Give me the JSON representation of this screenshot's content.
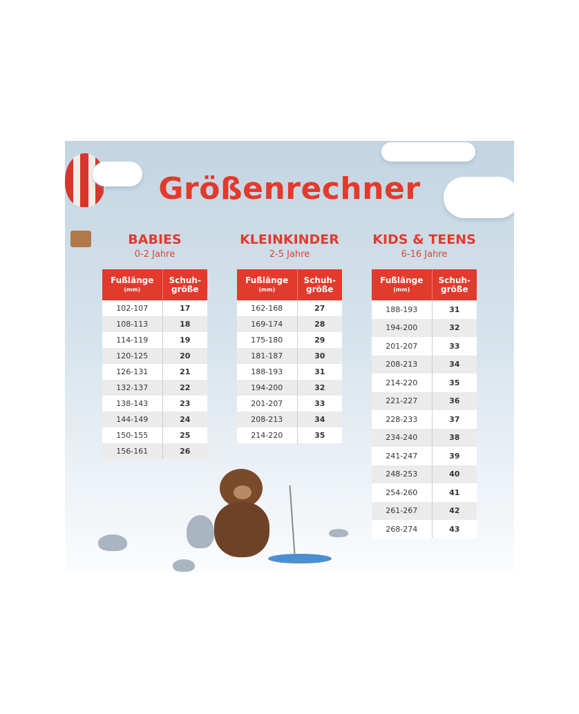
{
  "title": "Größenrechner",
  "header": {
    "foot_length": "Fußlänge",
    "foot_unit": "(mm)",
    "size_line1": "Schuh-",
    "size_line2": "größe"
  },
  "colors": {
    "accent": "#e23a2c",
    "row_alt": "#ebebeb"
  },
  "groups": [
    {
      "name": "BABIES",
      "age": "0-2 Jahre",
      "rows": [
        [
          "102-107",
          "17"
        ],
        [
          "108-113",
          "18"
        ],
        [
          "114-119",
          "19"
        ],
        [
          "120-125",
          "20"
        ],
        [
          "126-131",
          "21"
        ],
        [
          "132-137",
          "22"
        ],
        [
          "138-143",
          "23"
        ],
        [
          "144-149",
          "24"
        ],
        [
          "150-155",
          "25"
        ],
        [
          "156-161",
          "26"
        ]
      ]
    },
    {
      "name": "KLEINKINDER",
      "age": "2-5 Jahre",
      "rows": [
        [
          "162-168",
          "27"
        ],
        [
          "169-174",
          "28"
        ],
        [
          "175-180",
          "29"
        ],
        [
          "181-187",
          "30"
        ],
        [
          "188-193",
          "31"
        ],
        [
          "194-200",
          "32"
        ],
        [
          "201-207",
          "33"
        ],
        [
          "208-213",
          "34"
        ],
        [
          "214-220",
          "35"
        ]
      ]
    },
    {
      "name": "KIDS & TEENS",
      "age": "6-16 Jahre",
      "rows": [
        [
          "188-193",
          "31"
        ],
        [
          "194-200",
          "32"
        ],
        [
          "201-207",
          "33"
        ],
        [
          "208-213",
          "34"
        ],
        [
          "214-220",
          "35"
        ],
        [
          "221-227",
          "36"
        ],
        [
          "228-233",
          "37"
        ],
        [
          "234-240",
          "38"
        ],
        [
          "241-247",
          "39"
        ],
        [
          "248-253",
          "40"
        ],
        [
          "254-260",
          "41"
        ],
        [
          "261-267",
          "42"
        ],
        [
          "268-274",
          "43"
        ]
      ]
    }
  ]
}
